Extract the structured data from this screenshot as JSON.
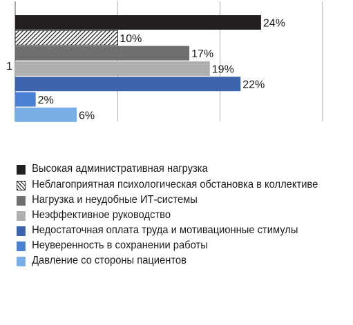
{
  "chart_data": {
    "type": "bar",
    "orientation": "horizontal",
    "categories": [
      "1"
    ],
    "xlim": [
      0,
      30
    ],
    "grid": true,
    "legend_position": "bottom",
    "series": [
      {
        "name": "Высокая административная нагрузка",
        "values": [
          24
        ],
        "label": "24%",
        "color": "#231f20",
        "pattern": "solid"
      },
      {
        "name": "Неблагоприятная психологическая обстановка в коллективе",
        "values": [
          10
        ],
        "label": "10%",
        "color": "#231f20",
        "pattern": "hatch"
      },
      {
        "name": "Нагрузка и неудобные ИТ-системы",
        "values": [
          17
        ],
        "label": "17%",
        "color": "#706e6e",
        "pattern": "solid"
      },
      {
        "name": "Неэффективное руководство",
        "values": [
          19
        ],
        "label": "19%",
        "color": "#b0afaf",
        "pattern": "solid"
      },
      {
        "name": "Недостаточная оплата труда и мотивационные стимулы",
        "values": [
          22
        ],
        "label": "22%",
        "color": "#3e64ad",
        "pattern": "solid"
      },
      {
        "name": "Неуверенность в сохранении работы",
        "values": [
          2
        ],
        "label": "2%",
        "color": "#4a80cf",
        "pattern": "solid"
      },
      {
        "name": "Давление со стороны пациентов",
        "values": [
          6
        ],
        "label": "6%",
        "color": "#7aaee6",
        "pattern": "solid"
      }
    ]
  }
}
